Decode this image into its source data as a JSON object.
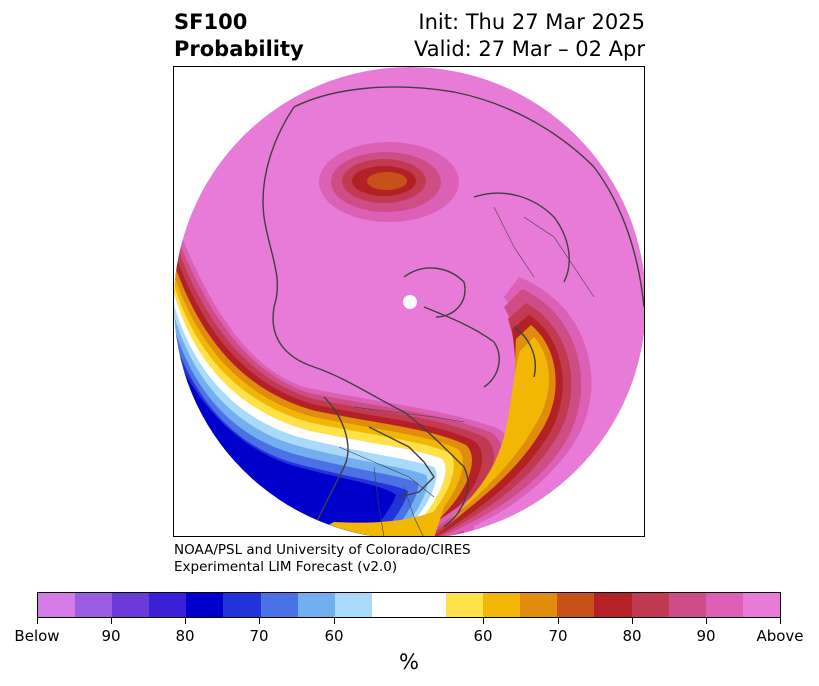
{
  "header": {
    "title_line1": "SF100",
    "title_line2": "Probability",
    "init": "Init: Thu 27 Mar 2025",
    "valid": "Valid: 27 Mar – 02 Apr"
  },
  "credit": {
    "line1": "NOAA/PSL and University of Colorado/CIRES",
    "line2": "Experimental LIM Forecast (v2.0)"
  },
  "colorbar": {
    "unit": "%",
    "colors": [
      "#d67ae8",
      "#9b5de0",
      "#6a3ad9",
      "#3a1fd6",
      "#0000cc",
      "#2233d9",
      "#4a72e6",
      "#72aef0",
      "#aadafa",
      "#ffffff",
      "#ffe14a",
      "#f2b705",
      "#e08c0c",
      "#c75118",
      "#b32025",
      "#c23a52",
      "#cf4d86",
      "#dc60b6",
      "#e87ad8"
    ],
    "tick_labels": [
      "Below",
      "90",
      "80",
      "70",
      "60",
      "60",
      "70",
      "80",
      "90",
      "Above"
    ]
  },
  "map": {
    "projection": "north polar stereographic",
    "colors": {
      "background_pink": "#e87ad8",
      "above_red": "#b32025",
      "above_orange": "#c75118",
      "above_yellow": "#f2b705",
      "below_blue": "#0000cc",
      "below_violet": "#6a3ad9",
      "coastline": "#404040"
    }
  }
}
